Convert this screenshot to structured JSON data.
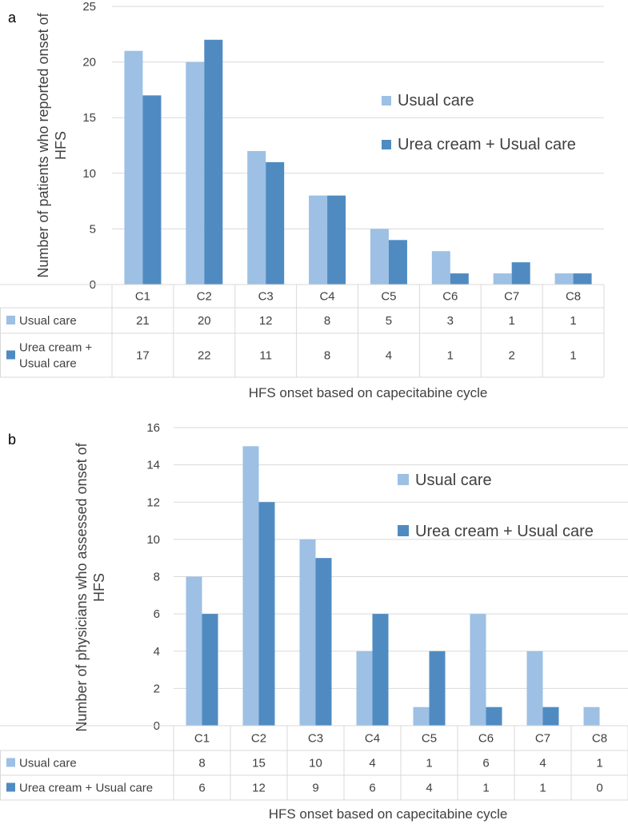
{
  "colors": {
    "usual": "#9DC0E4",
    "urea": "#4F8BC1",
    "grid": "#D9D9D9",
    "text": "#404040"
  },
  "chart_data": [
    {
      "panel_label": "a",
      "type": "bar",
      "categories": [
        "C1",
        "C2",
        "C3",
        "C4",
        "C5",
        "C6",
        "C7",
        "C8"
      ],
      "series": [
        {
          "name": "Usual care",
          "values": [
            21,
            20,
            12,
            8,
            5,
            3,
            1,
            1
          ]
        },
        {
          "name": "Urea cream + Usual care",
          "values": [
            17,
            22,
            11,
            8,
            4,
            1,
            2,
            1
          ]
        }
      ],
      "ylim": [
        0,
        25
      ],
      "yticks": [
        0,
        5,
        10,
        15,
        20,
        25
      ],
      "ylabel_line1": "Number of patients who reported onset of",
      "ylabel_line2": "HFS",
      "xlabel": "HFS onset based on capecitabine cycle",
      "table_row_labels": [
        [
          "Usual care"
        ],
        [
          "Urea cream +",
          "Usual care"
        ]
      ],
      "legend": [
        "Usual care",
        "Urea cream + Usual care"
      ],
      "grid": true
    },
    {
      "panel_label": "b",
      "type": "bar",
      "categories": [
        "C1",
        "C2",
        "C3",
        "C4",
        "C5",
        "C6",
        "C7",
        "C8"
      ],
      "series": [
        {
          "name": "Usual care",
          "values": [
            8,
            15,
            10,
            4,
            1,
            6,
            4,
            1
          ]
        },
        {
          "name": "Urea cream + Usual care",
          "values": [
            6,
            12,
            9,
            6,
            4,
            1,
            1,
            0
          ]
        }
      ],
      "ylim": [
        0,
        16
      ],
      "yticks": [
        0,
        2,
        4,
        6,
        8,
        10,
        12,
        14,
        16
      ],
      "ylabel_line1": "Number of physicians who assessed onset of",
      "ylabel_line2": "HFS",
      "xlabel": "HFS onset based on capecitabine cycle",
      "table_row_labels": [
        [
          "Usual care"
        ],
        [
          "Urea cream + Usual care"
        ]
      ],
      "legend": [
        "Usual care",
        "Urea cream + Usual care"
      ],
      "grid": true
    }
  ]
}
